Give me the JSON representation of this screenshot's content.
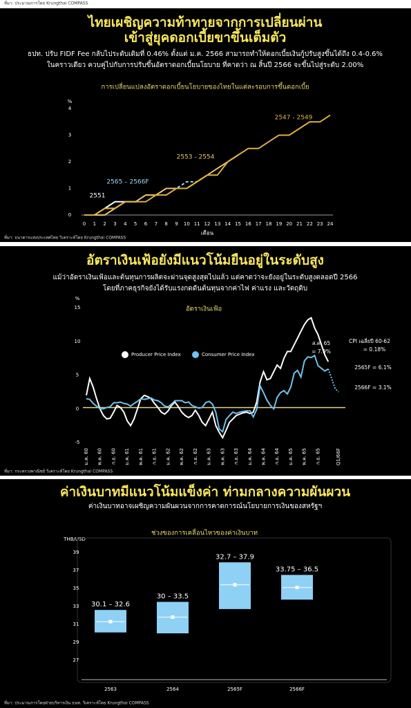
{
  "header": {
    "source": "ที่มา: ประมาณการโดย Krungthai COMPASS"
  },
  "chart_data": [
    {
      "type": "line",
      "title": [
        "ไทยเผชิญความท้าทายจากการเปลี่ยนผ่าน",
        "เข้าสู่ยุคดอกเบี้ยขาขึ้นเต็มตัว"
      ],
      "subtitle": [
        "ธปท. ปรับ FIDF Fee กลับไประดับเดิมที่ 0.46% ตั้งแต่ ม.ค. 2566 สามารถทำให้ดอกเบี้ยเงินกู้ปรับสูงขึ้นได้ถึง 0.4-0.6%",
        "ในคราวเดียว ควบคู่ไปกับการปรับขึ้นอัตราดอกเบี้ยนโยบาย ที่คาดว่า ณ สิ้นปี 2566 จะขึ้นไปสู่ระดับ 2.00%"
      ],
      "chart_title": "การเปลี่ยนแปลงอัตราดอกเบี้ยนโยบายของไทยในแต่ละรอบการขึ้นดอกเบี้ย",
      "y_unit": "%",
      "x_label": "เดือน",
      "x": [
        0,
        1,
        2,
        3,
        4,
        5,
        6,
        7,
        8,
        9,
        10,
        11,
        12,
        13,
        14,
        15,
        16,
        17,
        18,
        19,
        20,
        21,
        22,
        23,
        24
      ],
      "xlim": [
        0,
        24
      ],
      "xticks": [
        0,
        1,
        2,
        3,
        4,
        5,
        6,
        7,
        8,
        9,
        10,
        11,
        12,
        13,
        14,
        15,
        16,
        17,
        18,
        19,
        20,
        21,
        22,
        23,
        24
      ],
      "ylim": [
        0,
        4
      ],
      "yticks": [
        0,
        1,
        2,
        3,
        4
      ],
      "series": [
        {
          "name": "2551",
          "color": "#ffffff",
          "values": [
            0,
            0,
            0.25,
            0.5,
            0.5,
            null,
            null,
            null,
            null,
            null,
            null,
            null,
            null,
            null,
            null,
            null,
            null,
            null,
            null,
            null,
            null,
            null,
            null,
            null,
            null
          ]
        },
        {
          "name": "2565 – 2566F",
          "color": "#9fd8f5",
          "dashed": true,
          "values": [
            0,
            0,
            0.25,
            0.25,
            0.5,
            0.5,
            0.75,
            0.75,
            1,
            1,
            1.25,
            1.25,
            1.5,
            null,
            null,
            null,
            null,
            null,
            null,
            null,
            null,
            null,
            null,
            null,
            null
          ]
        },
        {
          "name": "2553 - 2554",
          "color": "#e6c56a",
          "values": [
            0,
            0,
            0,
            0.25,
            0.5,
            0.5,
            0.75,
            0.75,
            1,
            1,
            1,
            1.25,
            1.5,
            1.75,
            2,
            2.25,
            null,
            null,
            null,
            null,
            null,
            null,
            null,
            null,
            null
          ]
        },
        {
          "name": "2547 - 2549",
          "color": "#e0b040",
          "values": [
            0,
            0,
            0.25,
            0.25,
            0.5,
            0.5,
            0.5,
            0.75,
            0.75,
            1,
            1,
            1.25,
            1.5,
            1.5,
            2,
            2.25,
            2.5,
            2.5,
            2.75,
            3,
            3,
            3.25,
            3.5,
            3.5,
            3.75
          ]
        }
      ],
      "source": "ที่มา: ธนาคารแห่งประเทศไทย วิเคราะห์โดย Krungthai COMPASS"
    },
    {
      "type": "line",
      "title": [
        "อัตราเงินเฟ้อยังมีแนวโน้มยืนอยู่ในระดับสูง"
      ],
      "subtitle": [
        "แม้ว่าอัตราเงินเฟ้อและต้นทุนการผลิตจะผ่านจุดสูงสุดไปแล้ว แต่คาดว่าจะยังอยู่ในระดับสูงตลอดปี 2566",
        "โดยที่ภาคธุรกิจยังได้รับแรงกดดันต้นทุนจากค่าไฟ ค่าแรง และวัตถุดิบ"
      ],
      "chart_title": "อัตราเงินเฟ้อ",
      "y_unit": "%",
      "categories": [
        "ม.ค. 60",
        null,
        null,
        null,
        "พ.ค. 60",
        null,
        null,
        null,
        "ก.ย. 60",
        null,
        null,
        null,
        "ม.ค. 61",
        null,
        null,
        null,
        "พ.ค. 61",
        null,
        null,
        null,
        "ก.ย. 61",
        null,
        null,
        null,
        "ม.ค. 62",
        null,
        null,
        null,
        "พ.ค. 62",
        null,
        null,
        null,
        "ก.ย. 62",
        null,
        null,
        null,
        "ม.ค. 63",
        null,
        null,
        null,
        "พ.ค. 63",
        null,
        null,
        null,
        "ก.ย. 63",
        null,
        null,
        null,
        "ม.ค. 64",
        null,
        null,
        null,
        "พ.ค. 64",
        null,
        null,
        null,
        "ก.ย. 64",
        null,
        null,
        null,
        "ม.ค. 65",
        null,
        null,
        null,
        "พ.ค. 65",
        null,
        null,
        null,
        "ก.ย. 65",
        null,
        null,
        null,
        null,
        null,
        "Q1/66F"
      ],
      "ylim": [
        -5,
        15
      ],
      "yticks": [
        -5,
        0,
        5,
        10,
        15
      ],
      "reference_line": 0.18,
      "reference_color": "#e6d98a",
      "series": [
        {
          "name": "Producer Price Index",
          "color": "#ffffff",
          "values": [
            2.0,
            4.5,
            3.2,
            1.5,
            0.0,
            -1.0,
            -1.5,
            -1.4,
            -0.5,
            0.5,
            0.2,
            -0.5,
            -1.8,
            -2.5,
            -1.5,
            0.0,
            1.5,
            2.0,
            1.8,
            1.5,
            0.8,
            0.2,
            -0.5,
            -0.8,
            -0.3,
            0.5,
            1.0,
            0.3,
            -0.5,
            -1.0,
            -1.3,
            -1.0,
            -0.2,
            -1.0,
            -2.0,
            -2.5,
            -1.5,
            -0.5,
            -2.5,
            -3.5,
            -4.3,
            -3.2,
            -2.0,
            -1.5,
            -1.0,
            -0.8,
            -0.6,
            -0.5,
            -0.7,
            -0.5,
            1.0,
            4.0,
            5.5,
            4.3,
            4.5,
            5.5,
            6.5,
            6.0,
            7.5,
            8.5,
            8.5,
            9.5,
            10.5,
            11.5,
            12.5,
            13.2,
            13.5,
            12.0,
            11.0,
            9.5,
            8.0,
            7.0,
            null,
            null,
            null
          ]
        },
        {
          "name": "Consumer Price Index",
          "color": "#6fc3ee",
          "forecast_from": 72,
          "values": [
            1.5,
            1.4,
            0.8,
            0.4,
            0.0,
            0.0,
            0.2,
            0.3,
            0.9,
            0.9,
            1.0,
            0.8,
            0.7,
            0.4,
            0.8,
            1.1,
            1.5,
            1.4,
            1.5,
            1.6,
            1.3,
            1.2,
            0.9,
            0.4,
            0.3,
            0.7,
            1.2,
            1.2,
            1.2,
            0.9,
            1.0,
            0.5,
            0.3,
            0.1,
            0.2,
            0.9,
            1.1,
            0.7,
            -0.5,
            -3.0,
            -3.4,
            -1.6,
            -1.0,
            -0.5,
            -0.7,
            -0.5,
            -0.4,
            -0.3,
            -0.3,
            -1.2,
            -0.1,
            3.4,
            2.4,
            1.3,
            0.5,
            0.0,
            1.7,
            2.4,
            2.7,
            2.2,
            3.2,
            5.3,
            5.7,
            4.7,
            7.1,
            7.7,
            7.6,
            7.9,
            6.4,
            6.0,
            5.6,
            5.9,
            4.5,
            3.0,
            2.5
          ]
        }
      ],
      "annotations": [
        "ส.ค. 65",
        "= 7.9%",
        "CPI เฉลี่ยปี 60-62",
        "= 0.18%",
        "2565F = 6.1%",
        "2566F = 3.1%"
      ],
      "source": "ที่มา: กระทรวงพาณิชย์ วิเคราะห์โดย Krungthai COMPASS"
    },
    {
      "type": "range",
      "title": [
        "ค่าเงินบาทมีแนวโน้มแข็งค่า ท่ามกลางความผันผวน"
      ],
      "subtitle": [
        "ค่าเงินบาทอาจเผชิญความผันผวนจากการคาดการณ์นโยบายการเงินของสหรัฐฯ"
      ],
      "chart_title": "ช่วงของการเคลื่อนไหวของค่าเงินบาท",
      "y_unit": "THB/USD",
      "categories": [
        "2563",
        "2564",
        "2565F",
        "2566F"
      ],
      "low": [
        30.1,
        30,
        32.7,
        33.75
      ],
      "high": [
        32.6,
        33.5,
        37.9,
        36.5
      ],
      "mid": [
        31.3,
        31.8,
        35.4,
        35.1
      ],
      "range_labels": [
        "30.1 – 32.6",
        "30 – 33.5",
        "32.7 – 37.9",
        "33.75 – 36.5"
      ],
      "color": "#8fd0f5",
      "ylim": [
        25,
        40
      ],
      "yticks": [
        27,
        29,
        31,
        33,
        35,
        37,
        39
      ],
      "source": "ที่มา: ประมาณการโดยฝ่ายบริหารเงิน ธนท. วิเคราะห์โดย Krungthai COMPASS"
    }
  ]
}
